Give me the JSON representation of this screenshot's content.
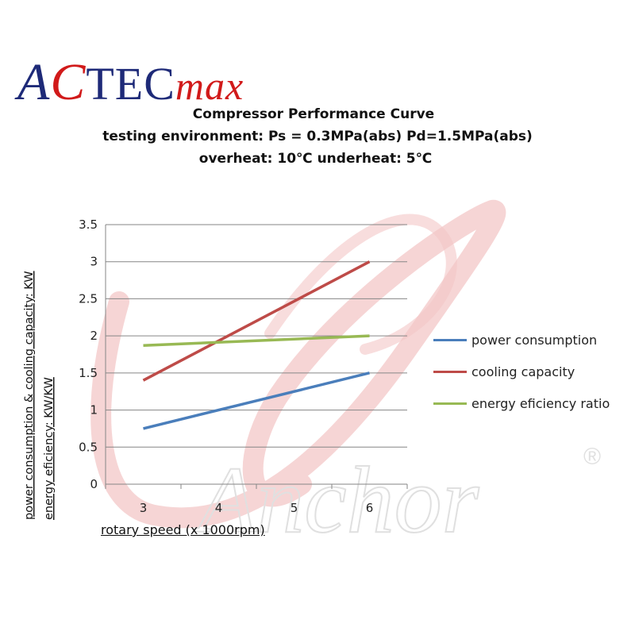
{
  "logo": {
    "a": "A",
    "c": "C",
    "tec": "TEC",
    "max": "max"
  },
  "titles": {
    "line1": "Compressor Performance Curve",
    "line2": "testing environment: Ps = 0.3MPa(abs)   Pd=1.5MPa(abs)",
    "line3": "overheat: 10℃  underheat: 5℃"
  },
  "watermark": {
    "text": "Anchor",
    "mark": "®"
  },
  "colors": {
    "power": "#4a7ebb",
    "cooling": "#be4b48",
    "eer": "#98b954",
    "grid": "#868686",
    "watermark": "#e0e0e0",
    "watermark_swirl": "#f3c7c7"
  },
  "chart_data": {
    "type": "line",
    "xlabel": "rotary speed (x 1000rpm)",
    "ylabel_line1": "power consumption & cooling capacity: KW",
    "ylabel_line2": "energy eficiency: KW/KW",
    "x": [
      3,
      6
    ],
    "xticks": [
      "3",
      "4",
      "5",
      "6"
    ],
    "xcats": [
      3,
      4,
      5,
      6
    ],
    "yticks": [
      "0",
      "0.5",
      "1",
      "1.5",
      "2",
      "2.5",
      "3",
      "3.5"
    ],
    "ylim": [
      0,
      3.5
    ],
    "grid": "horizontal",
    "legend_position": "right",
    "series": [
      {
        "name": "power consumption",
        "values": [
          0.75,
          1.5
        ]
      },
      {
        "name": "cooling capacity",
        "values": [
          1.4,
          3.0
        ]
      },
      {
        "name": "energy eficiency ratio",
        "values": [
          1.87,
          2.0
        ]
      }
    ]
  }
}
